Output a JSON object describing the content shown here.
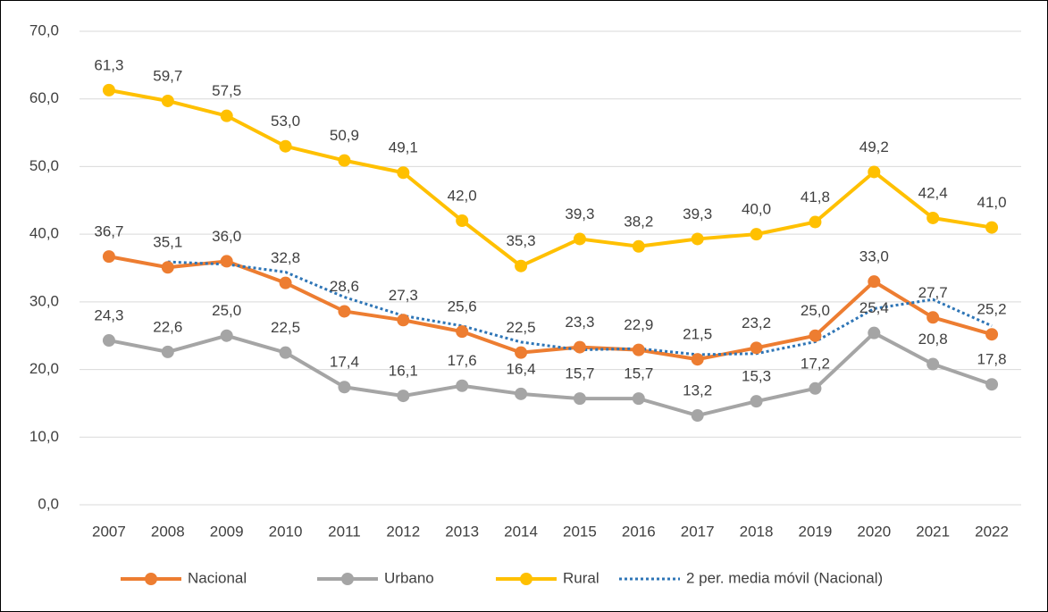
{
  "chart_data": {
    "type": "line",
    "categories": [
      "2007",
      "2008",
      "2009",
      "2010",
      "2011",
      "2012",
      "2013",
      "2014",
      "2015",
      "2016",
      "2017",
      "2018",
      "2019",
      "2020",
      "2021",
      "2022"
    ],
    "ylim": [
      0,
      70
    ],
    "yticks": [
      {
        "value": 0,
        "label": "0,0"
      },
      {
        "value": 10,
        "label": "10,0"
      },
      {
        "value": 20,
        "label": "20,0"
      },
      {
        "value": 30,
        "label": "30,0"
      },
      {
        "value": 40,
        "label": "40,0"
      },
      {
        "value": 50,
        "label": "50,0"
      },
      {
        "value": 60,
        "label": "60,0"
      },
      {
        "value": 70,
        "label": "70,0"
      }
    ],
    "grid": true,
    "legend": "bottom",
    "series": [
      {
        "name": "Nacional",
        "color": "#ED7D31",
        "style": "solid",
        "markers": true,
        "values": [
          36.7,
          35.1,
          36.0,
          32.8,
          28.6,
          27.3,
          25.6,
          22.5,
          23.3,
          22.9,
          21.5,
          23.2,
          25.0,
          33.0,
          27.7,
          25.2
        ],
        "value_labels": [
          "36,7",
          "35,1",
          "36,0",
          "32,8",
          "28,6",
          "27,3",
          "25,6",
          "22,5",
          "23,3",
          "22,9",
          "21,5",
          "23,2",
          "25,0",
          "33,0",
          "27,7",
          "25,2"
        ]
      },
      {
        "name": "Urbano",
        "color": "#A5A5A5",
        "style": "solid",
        "markers": true,
        "values": [
          24.3,
          22.6,
          25.0,
          22.5,
          17.4,
          16.1,
          17.6,
          16.4,
          15.7,
          15.7,
          13.2,
          15.3,
          17.2,
          25.4,
          20.8,
          17.8
        ],
        "value_labels": [
          "24,3",
          "22,6",
          "25,0",
          "22,5",
          "17,4",
          "16,1",
          "17,6",
          "16,4",
          "15,7",
          "15,7",
          "13,2",
          "15,3",
          "17,2",
          "25,4",
          "20,8",
          "17,8"
        ]
      },
      {
        "name": "Rural",
        "color": "#FFC000",
        "style": "solid",
        "markers": true,
        "values": [
          61.3,
          59.7,
          57.5,
          53.0,
          50.9,
          49.1,
          42.0,
          35.3,
          39.3,
          38.2,
          39.3,
          40.0,
          41.8,
          49.2,
          42.4,
          41.0
        ],
        "value_labels": [
          "61,3",
          "59,7",
          "57,5",
          "53,0",
          "50,9",
          "49,1",
          "42,0",
          "35,3",
          "39,3",
          "38,2",
          "39,3",
          "40,0",
          "41,8",
          "49,2",
          "42,4",
          "41,0"
        ]
      },
      {
        "name": "2 per. media móvil (Nacional)",
        "color": "#2E75B6",
        "style": "dotted",
        "markers": false,
        "values": [
          null,
          35.9,
          35.55,
          34.4,
          30.7,
          27.95,
          26.45,
          24.05,
          22.9,
          23.1,
          22.2,
          22.35,
          24.1,
          29.0,
          30.35,
          26.45
        ]
      }
    ]
  }
}
